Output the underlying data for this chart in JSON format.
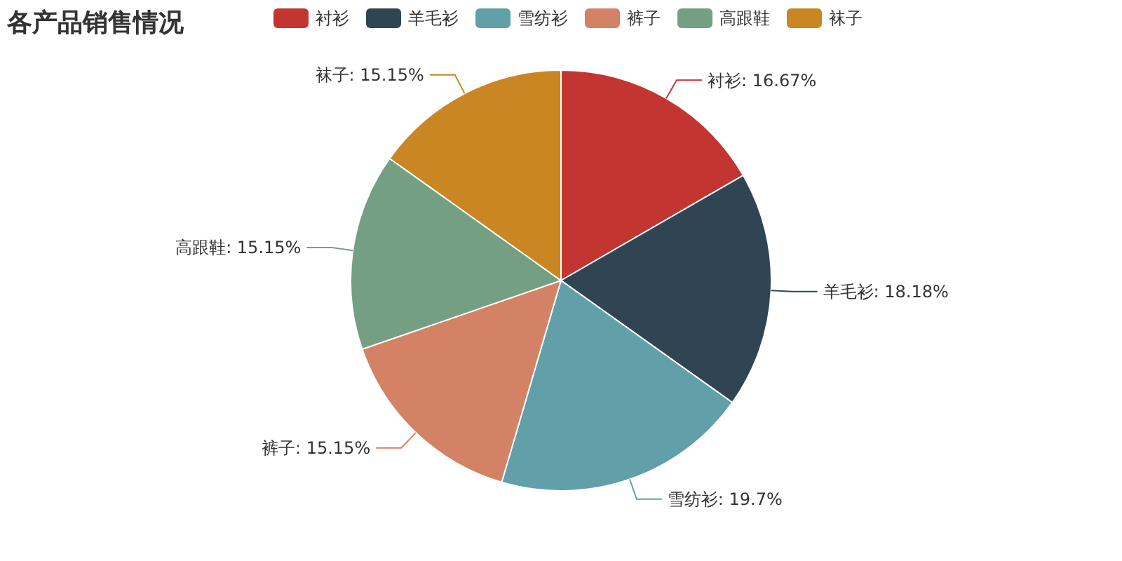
{
  "chart_data": {
    "type": "pie",
    "title": "各产品销售情况",
    "legend": "top",
    "categories": [
      "衬衫",
      "羊毛衫",
      "雪纺衫",
      "裤子",
      "高跟鞋",
      "袜子"
    ],
    "values": [
      16.67,
      18.18,
      19.7,
      15.15,
      15.15,
      15.15
    ],
    "value_labels": [
      "衬衫: 16.67%",
      "羊毛衫: 18.18%",
      "雪纺衫: 19.7%",
      "裤子: 15.15%",
      "高跟鞋: 15.15%",
      "袜子: 15.15%"
    ],
    "colors": [
      "#c23531",
      "#2f4554",
      "#61a0a8",
      "#d48265",
      "#749f83",
      "#ca8622"
    ]
  }
}
